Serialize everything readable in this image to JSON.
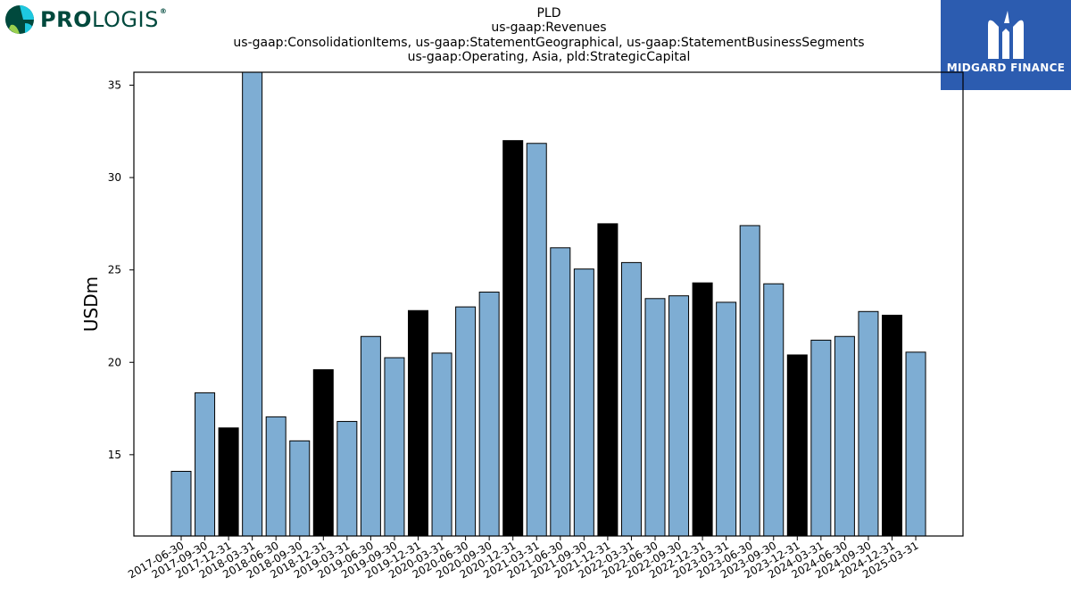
{
  "chart_data": {
    "type": "bar",
    "title_lines": [
      "PLD",
      "us-gaap:Revenues",
      "us-gaap:ConsolidationItems, us-gaap:StatementGeographical, us-gaap:StatementBusinessSegments",
      "us-gaap:Operating, Asia, pld:StrategicCapital"
    ],
    "ylabel": "USDm",
    "xlabel": "",
    "ylim": [
      10.6,
      35.7
    ],
    "yticks": [
      15,
      20,
      25,
      30,
      35
    ],
    "categories": [
      "2017-06-30",
      "2017-09-30",
      "2017-12-31",
      "2018-03-31",
      "2018-06-30",
      "2018-09-30",
      "2018-12-31",
      "2019-03-31",
      "2019-06-30",
      "2019-09-30",
      "2019-12-31",
      "2020-03-31",
      "2020-06-30",
      "2020-09-30",
      "2020-12-31",
      "2021-03-31",
      "2021-06-30",
      "2021-09-30",
      "2021-12-31",
      "2022-03-31",
      "2022-06-30",
      "2022-09-30",
      "2022-12-31",
      "2023-03-31",
      "2023-06-30",
      "2023-09-30",
      "2023-12-31",
      "2024-03-31",
      "2024-06-30",
      "2024-09-30",
      "2024-12-31",
      "2025-03-31"
    ],
    "values": [
      14.1,
      18.35,
      16.45,
      35.8,
      17.05,
      15.75,
      19.6,
      16.8,
      21.4,
      20.25,
      22.8,
      20.5,
      23.0,
      23.8,
      32.0,
      31.85,
      26.2,
      25.05,
      27.5,
      25.4,
      23.45,
      23.6,
      24.3,
      23.25,
      27.4,
      24.25,
      20.4,
      21.2,
      21.4,
      22.75,
      22.55,
      20.55
    ],
    "highlight_quarter": "12-31",
    "colors": {
      "bar": "#7eadd3",
      "bar_highlight": "#000000",
      "bar_edge": "#000000"
    },
    "grid": false
  },
  "logos": {
    "left": {
      "text_bold": "PRO",
      "text_regular": "LOGIS",
      "mark": "®",
      "color": "#00493d"
    },
    "right": {
      "text": "MIDGARD FINANCE",
      "background": "#2c5cb0"
    }
  }
}
